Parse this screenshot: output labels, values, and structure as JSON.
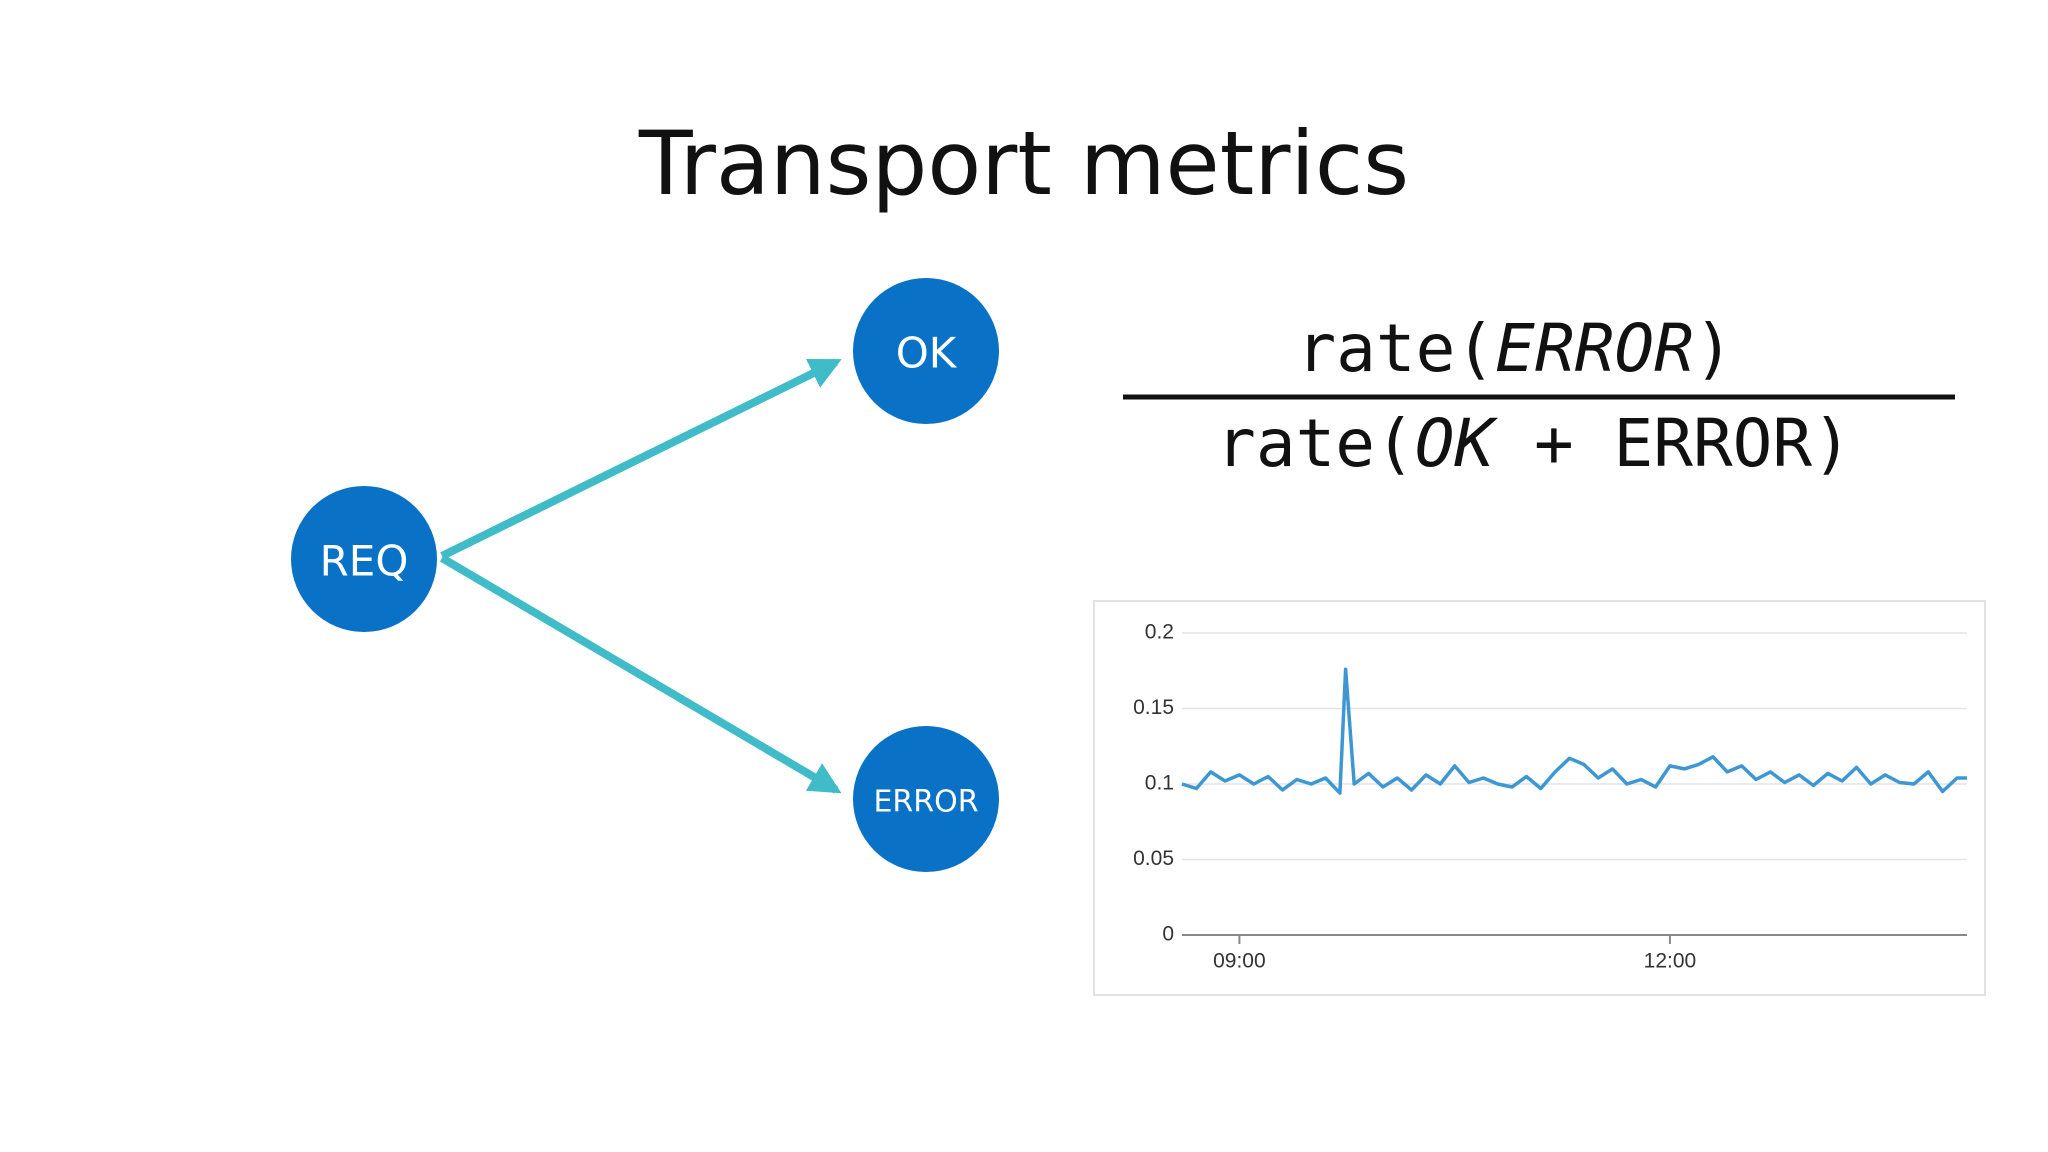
{
  "title": "Transport metrics",
  "diagram": {
    "nodes": [
      {
        "label": "REQ"
      },
      {
        "label": "OK"
      },
      {
        "label": "ERROR"
      }
    ]
  },
  "formula": {
    "numerator": [
      "rate(",
      "ERROR",
      ")"
    ],
    "denominator": [
      "rate(",
      "OK",
      " + ERROR)"
    ]
  },
  "chart_data": {
    "type": "line",
    "color": "#3d97d3",
    "grid": true,
    "x": [
      8.6,
      8.7,
      8.8,
      8.9,
      9.0,
      9.1,
      9.2,
      9.3,
      9.4,
      9.5,
      9.6,
      9.7,
      9.74,
      9.8,
      9.9,
      10.0,
      10.1,
      10.2,
      10.3,
      10.4,
      10.5,
      10.6,
      10.7,
      10.8,
      10.9,
      11.0,
      11.1,
      11.2,
      11.3,
      11.4,
      11.5,
      11.6,
      11.7,
      11.8,
      11.9,
      12.0,
      12.1,
      12.2,
      12.3,
      12.4,
      12.5,
      12.6,
      12.7,
      12.8,
      12.9,
      13.0,
      13.1,
      13.2,
      13.3,
      13.4,
      13.5,
      13.6,
      13.7,
      13.8,
      13.9,
      14.0,
      14.07
    ],
    "values": [
      0.1,
      0.097,
      0.108,
      0.102,
      0.106,
      0.1,
      0.105,
      0.096,
      0.103,
      0.1,
      0.104,
      0.094,
      0.176,
      0.1,
      0.107,
      0.098,
      0.104,
      0.096,
      0.106,
      0.1,
      0.112,
      0.101,
      0.104,
      0.1,
      0.098,
      0.105,
      0.097,
      0.108,
      0.117,
      0.113,
      0.104,
      0.11,
      0.1,
      0.103,
      0.098,
      0.112,
      0.11,
      0.113,
      0.118,
      0.108,
      0.112,
      0.103,
      0.108,
      0.101,
      0.106,
      0.099,
      0.107,
      0.102,
      0.111,
      0.1,
      0.106,
      0.101,
      0.1,
      0.108,
      0.095,
      0.104,
      0.104
    ],
    "xlim": [
      8.6,
      14.07
    ],
    "xticks": [
      {
        "value": 9,
        "label": "09:00"
      },
      {
        "value": 12,
        "label": "12:00"
      }
    ],
    "ylim": [
      0,
      0.2
    ],
    "yticks": [
      0,
      0.05,
      0.1,
      0.15,
      0.2
    ]
  }
}
